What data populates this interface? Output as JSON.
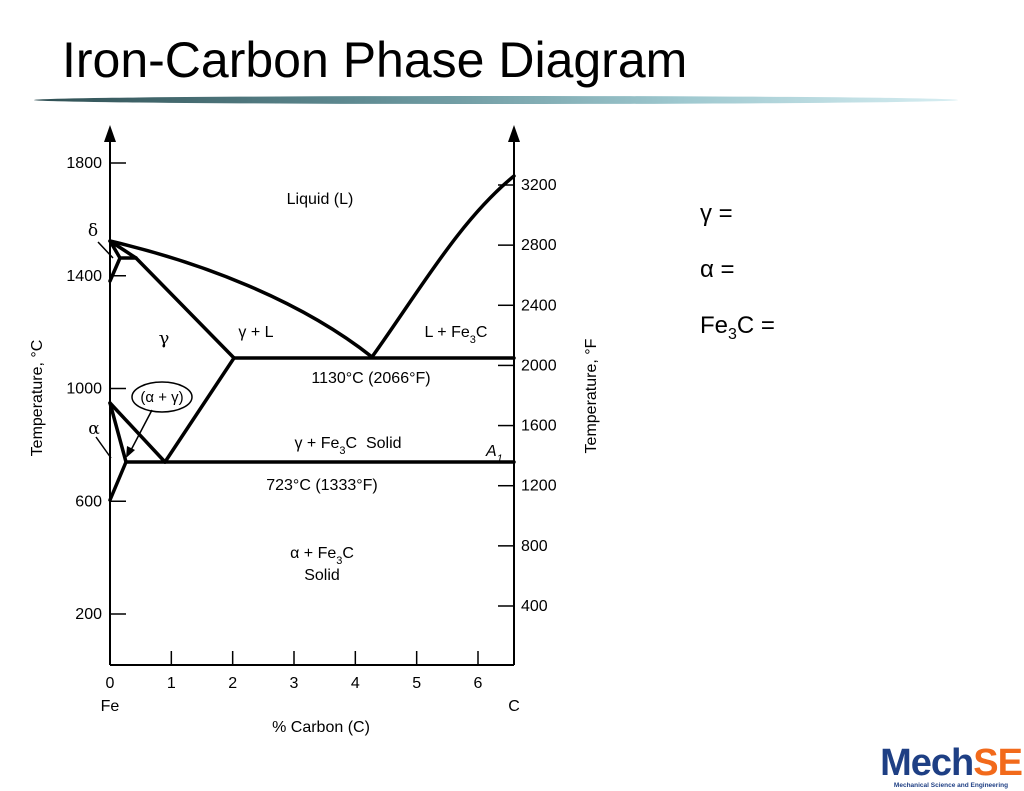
{
  "slide": {
    "title": "Iron-Carbon Phase Diagram"
  },
  "diagram": {
    "left_axis": {
      "label": "Temperature, °C",
      "ticks": [
        "1800",
        "1400",
        "1000",
        "600",
        "200"
      ]
    },
    "right_axis": {
      "label": "Temperature, °F",
      "ticks": [
        "3200",
        "2800",
        "2400",
        "2000",
        "1600",
        "1200",
        "800",
        "400"
      ]
    },
    "x_axis": {
      "label": "% Carbon (C)",
      "ticks": [
        "0",
        "1",
        "2",
        "3",
        "4",
        "5",
        "6"
      ],
      "left_end": "Fe",
      "right_end": "C"
    },
    "regions": {
      "liquid": "Liquid (L)",
      "gamma": "γ",
      "gamma_liquid": "γ + L",
      "liquid_fe3c": "L + Fe3C",
      "alpha_gamma": "(α + γ)",
      "gamma_fe3c": "γ + Fe3C  Solid",
      "alpha_fe3c": "α + Fe3C",
      "alpha_fe3c_2": "Solid",
      "delta": "δ",
      "alpha": "α",
      "a1": "A1"
    },
    "annotations": {
      "eutectic": "1130°C (2066°F)",
      "eutectoid": "723°C (1333°F)"
    }
  },
  "notes": [
    {
      "label": "γ ="
    },
    {
      "label": "α ="
    },
    {
      "label": "Fe3C ="
    }
  ],
  "logo": {
    "word": "MechSE",
    "subtitle": "Mechanical Science and Engineering"
  }
}
